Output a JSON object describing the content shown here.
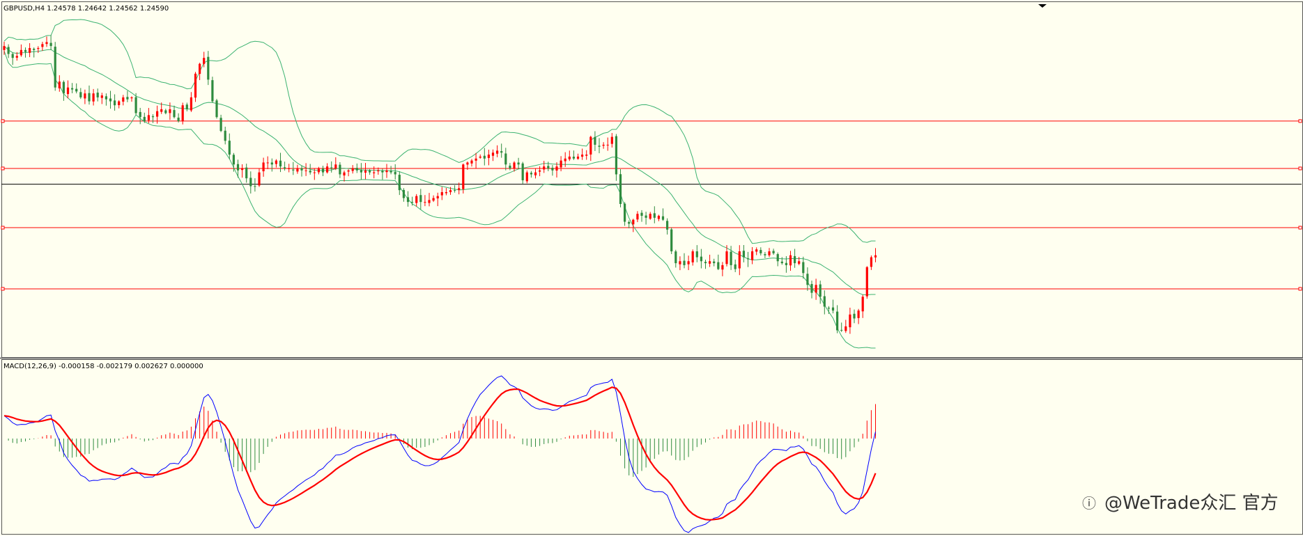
{
  "price_header": "GBPUSD,H4  1.24578 1.24642 1.24562 1.24590",
  "macd_header": "MACD(12,26,9) -0.000158 -0.002179 0.002627 0.000000",
  "watermark": "@WeTrade众汇 官方",
  "colors": {
    "background": "#fffff0",
    "bull_candle": "#ff0000",
    "bear_candle": "#2e8b3e",
    "bollinger": "#3cb371",
    "hline": "#ff0000",
    "current_price_line": "#000000",
    "macd_line": "#0000ff",
    "signal_line": "#ff0000",
    "hist_pos": "#ff0000",
    "hist_neg": "#2e8b3e"
  },
  "chart_data": [
    {
      "type": "candlestick",
      "symbol": "GBPUSD",
      "timeframe": "H4",
      "last_ohlc": {
        "open": 1.24578,
        "high": 1.24642,
        "low": 1.24562,
        "close": 1.2459
      },
      "axes_visible": false,
      "note_indicators": [
        "Bollinger Bands"
      ],
      "horizontal_lines": [
        0.7,
        3.8,
        6.8,
        9.2
      ],
      "current_line": 6.0,
      "close": [
        13.0,
        12.6,
        12.4,
        12.5,
        12.8,
        12.7,
        12.9,
        12.8,
        12.9,
        13.1,
        13.2,
        13.0,
        10.9,
        11.2,
        10.6,
        10.9,
        10.8,
        10.7,
        10.4,
        10.6,
        10.2,
        10.6,
        10.4,
        10.5,
        10.3,
        10.2,
        10.0,
        10.2,
        10.4,
        10.3,
        10.4,
        9.6,
        9.4,
        9.2,
        9.5,
        9.4,
        9.7,
        9.8,
        9.6,
        9.8,
        9.4,
        9.2,
        10.0,
        9.8,
        10.4,
        11.6,
        12.1,
        12.4,
        11.3,
        10.2,
        9.4,
        8.7,
        8.2,
        7.5,
        7.0,
        6.7,
        6.8,
        6.3,
        5.9,
        5.9,
        6.6,
        7.1,
        7.1,
        7.0,
        7.2,
        6.9,
        6.8,
        6.8,
        6.7,
        6.8,
        6.7,
        6.7,
        6.6,
        6.6,
        6.8,
        6.6,
        6.9,
        6.8,
        7.0,
        6.5,
        6.6,
        6.7,
        6.8,
        6.7,
        6.6,
        6.7,
        6.6,
        6.6,
        6.7,
        6.6,
        6.7,
        6.6,
        6.5,
        5.7,
        5.3,
        5.1,
        5.1,
        5.4,
        5.1,
        5.1,
        5.2,
        5.3,
        5.4,
        5.6,
        5.6,
        5.7,
        5.7,
        5.8,
        7.0,
        7.1,
        7.2,
        7.3,
        7.4,
        7.3,
        7.5,
        7.6,
        7.7,
        7.6,
        7.0,
        6.8,
        7.1,
        7.0,
        6.2,
        6.6,
        6.5,
        6.6,
        6.7,
        6.9,
        6.8,
        6.7,
        6.9,
        7.2,
        7.3,
        7.4,
        7.3,
        7.4,
        7.5,
        7.5,
        8.4,
        8.0,
        7.9,
        8.0,
        8.0,
        8.4,
        6.5,
        5.0,
        4.1,
        4.0,
        4.2,
        4.5,
        4.4,
        4.3,
        4.5,
        4.3,
        4.4,
        4.2,
        3.7,
        2.6,
        2.0,
        2.1,
        1.9,
        2.1,
        2.6,
        2.3,
        2.1,
        2.0,
        2.1,
        2.0,
        1.7,
        1.9,
        2.6,
        1.9,
        1.7,
        2.6,
        2.3,
        2.2,
        2.6,
        2.7,
        2.5,
        2.4,
        2.6,
        2.5,
        2.1,
        2.0,
        1.9,
        2.4,
        2.0,
        2.1,
        1.5,
        0.9,
        0.5,
        0.9,
        0.3,
        -0.2,
        -0.3,
        -0.4,
        -1.4,
        -1.4,
        -1.2,
        -0.6,
        -0.8,
        -0.4,
        0.3,
        1.8,
        2.3,
        2.4
      ]
    },
    {
      "type": "macd",
      "params": [
        12,
        26,
        9
      ],
      "values": {
        "main": -0.000158,
        "signal": -0.002179,
        "hist": 0.002627,
        "extra": 0.0
      },
      "axes_visible": false
    }
  ]
}
